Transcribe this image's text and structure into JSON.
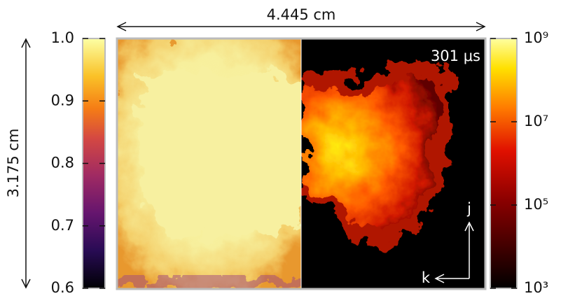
{
  "figure": {
    "width_label": "4.445 cm",
    "height_label": "3.175 cm",
    "time_label": "301 μs",
    "axis_j": "j",
    "axis_k": "k",
    "left_colorbar": {
      "lim": [
        0.6,
        1.0
      ],
      "log": false,
      "ticks": [
        0.6,
        0.7,
        0.8,
        0.9,
        {
          "value": 1.0,
          "label": "1.0"
        }
      ]
    },
    "right_colorbar": {
      "lim": [
        1000,
        1000000000
      ],
      "log": true,
      "ticks": [
        {
          "value": 1000,
          "label": "10³"
        },
        {
          "value": 100000,
          "label": "10⁵"
        },
        {
          "value": 10000000,
          "label": "10⁷"
        },
        {
          "value": 1000000000,
          "label": "10⁹"
        }
      ]
    }
  }
}
